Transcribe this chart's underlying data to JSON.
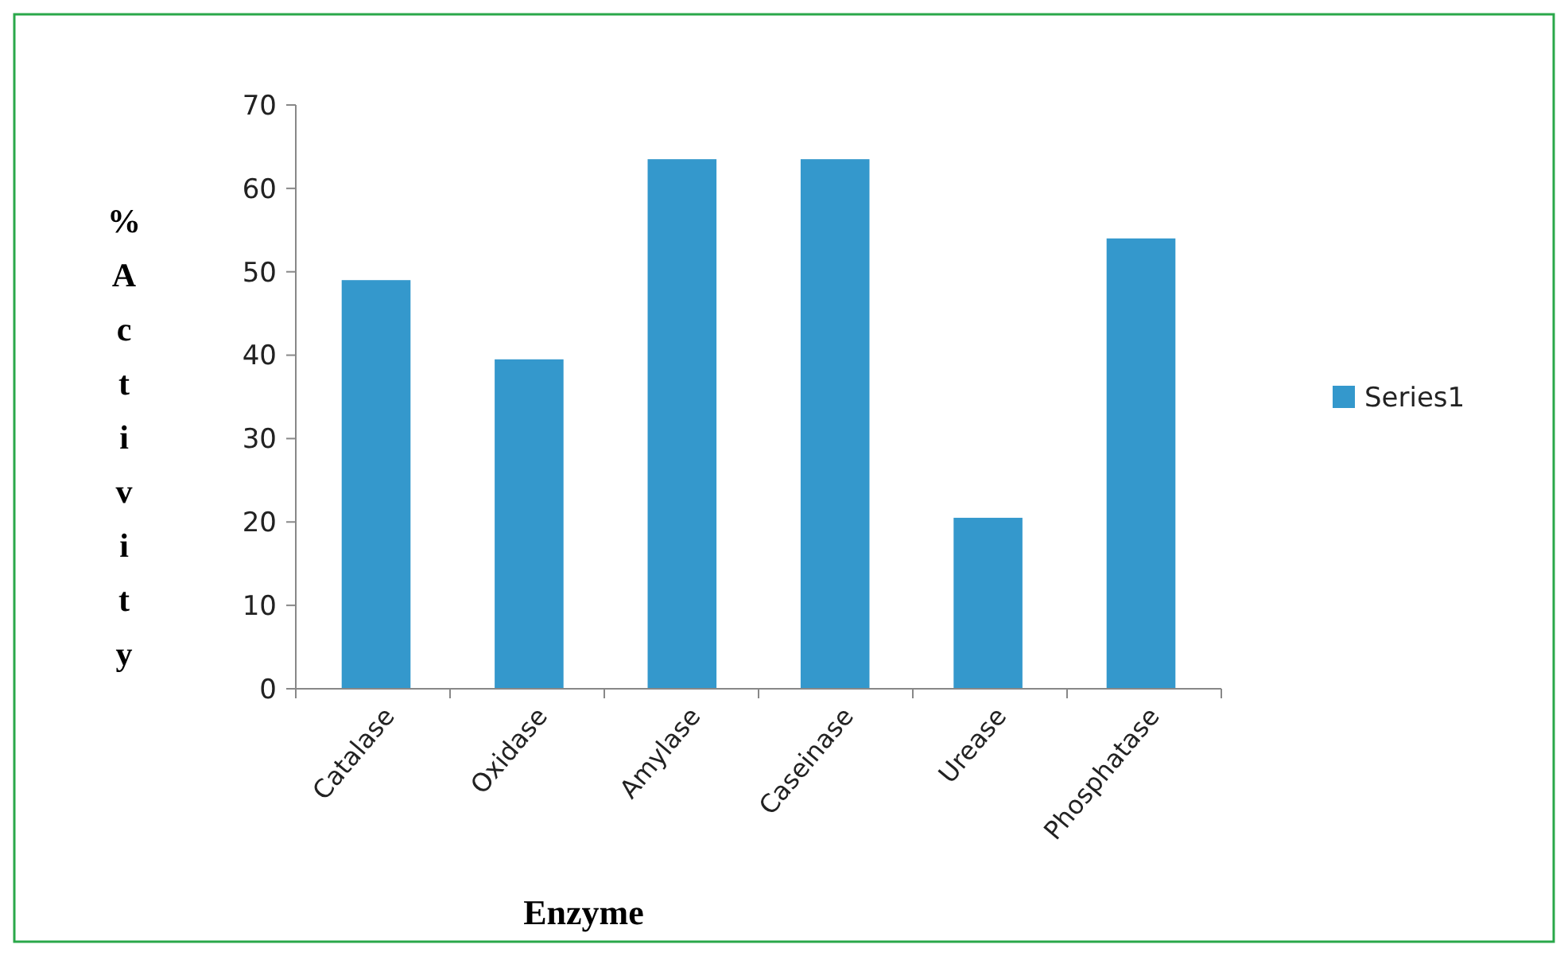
{
  "chart_data": {
    "type": "bar",
    "xlabel": "Enzyme",
    "ylabel": "%Activity",
    "categories": [
      "Catalase",
      "Oxidase",
      "Amylase",
      "Caseinase",
      "Urease",
      "Phosphatase"
    ],
    "series": [
      {
        "name": "Series1",
        "color": "#3498cc",
        "values": [
          49,
          39.5,
          63.5,
          63.5,
          20.5,
          54
        ]
      }
    ],
    "ylim": [
      0,
      70
    ],
    "yticks": [
      0,
      10,
      20,
      30,
      40,
      50,
      60,
      70
    ],
    "legend": "right",
    "grid": false
  }
}
